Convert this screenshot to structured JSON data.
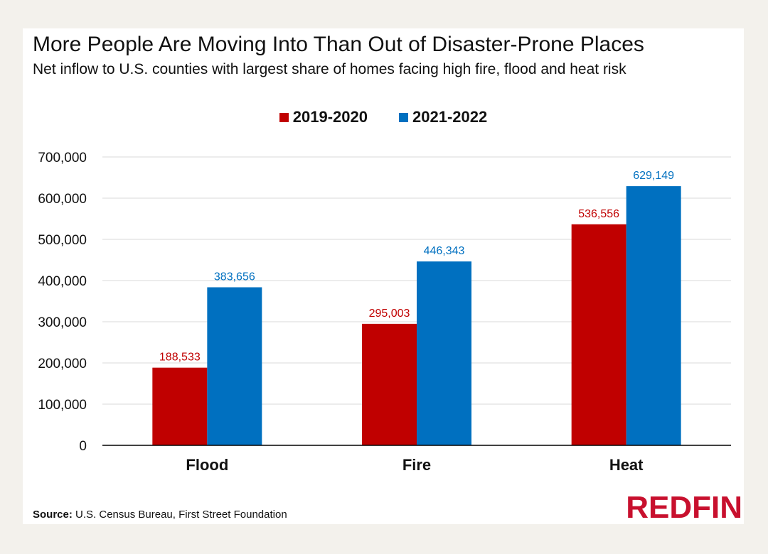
{
  "title": "More People Are Moving Into Than Out of Disaster-Prone Places",
  "subtitle": "Net inflow to U.S. counties with largest share of homes facing high fire, flood and heat risk",
  "source_label": "Source:",
  "source_text": "U.S. Census Bureau, First Street Foundation",
  "logo_text": "REDFIN",
  "colors": {
    "series1": "#c00000",
    "series2": "#0070c0",
    "grid": "#d9d9d9",
    "axis": "#000000"
  },
  "chart_data": {
    "type": "bar",
    "title": "More People Are Moving Into Than Out of Disaster-Prone Places",
    "subtitle": "Net inflow to U.S. counties with largest share of homes facing high fire, flood and heat risk",
    "categories": [
      "Flood",
      "Fire",
      "Heat"
    ],
    "series": [
      {
        "name": "2019-2020",
        "values": [
          188533,
          295003,
          536556
        ],
        "labels": [
          "188,533",
          "295,003",
          "536,556"
        ]
      },
      {
        "name": "2021-2022",
        "values": [
          383656,
          446343,
          629149
        ],
        "labels": [
          "383,656",
          "446,343",
          "629,149"
        ]
      }
    ],
    "ylim": [
      0,
      700000
    ],
    "yticks": [
      0,
      100000,
      200000,
      300000,
      400000,
      500000,
      600000,
      700000
    ],
    "ytick_labels": [
      "0",
      "100,000",
      "200,000",
      "300,000",
      "400,000",
      "500,000",
      "600,000",
      "700,000"
    ],
    "xlabel": "",
    "ylabel": "",
    "grid": true,
    "legend_position": "top-center"
  }
}
